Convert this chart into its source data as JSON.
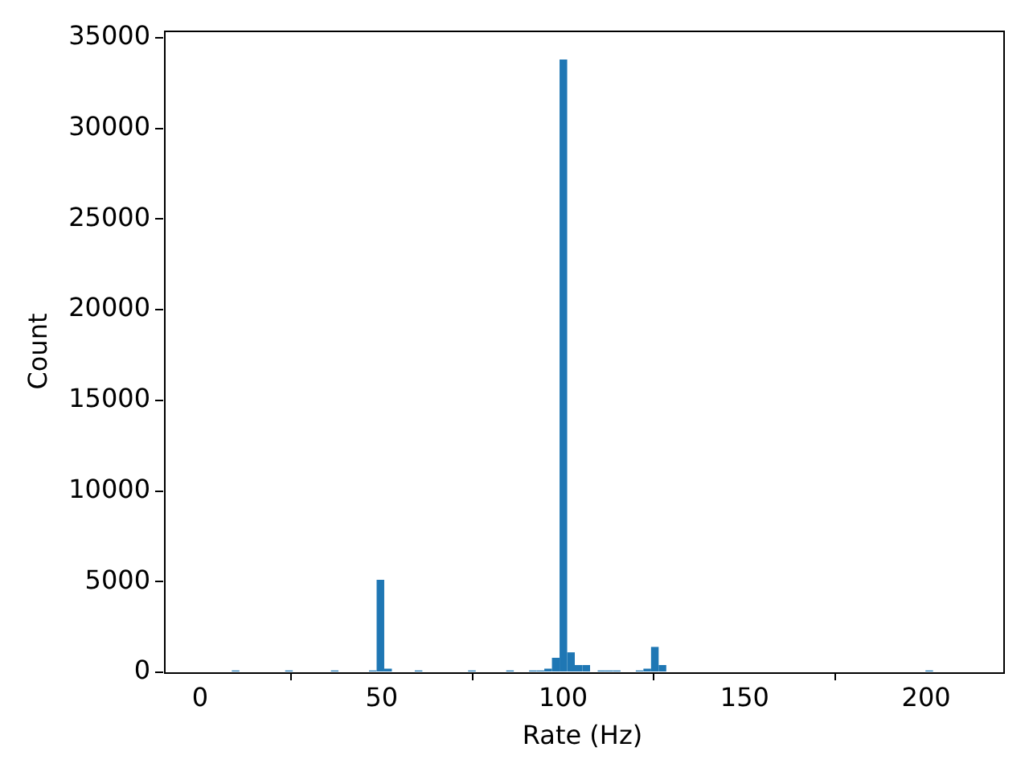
{
  "chart_data": {
    "type": "histogram",
    "xlabel": "Rate (Hz)",
    "ylabel": "Count",
    "color": "#1f77b4",
    "bins": [
      0.3,
      2.4,
      4.5,
      6.6,
      8.7,
      10.8,
      12.9,
      15,
      17.1,
      19.2,
      21.3,
      23.4,
      25.5,
      27.6,
      29.7,
      31.8,
      33.9,
      36,
      38.1,
      40.2,
      42.3,
      44.4,
      46.5,
      48.6,
      50.7,
      52.8,
      54.9,
      57,
      59.1,
      61.2,
      63.3,
      65.4,
      67.5,
      69.6,
      71.7,
      73.8,
      75.9,
      78,
      80.1,
      82.2,
      84.3,
      86.4,
      88.5,
      90.6,
      92.7,
      94.8,
      96.9,
      99,
      101.1,
      103.2,
      105.3,
      107.4,
      109.5,
      111.6,
      113.7,
      115.8,
      117.9,
      120,
      122.1,
      124.2,
      126.3,
      128.4,
      130.5,
      132.6,
      134.7,
      136.8,
      138.9,
      141,
      143.1,
      145.2,
      147.3,
      149.4,
      151.5,
      153.6,
      155.7,
      157.8,
      159.9,
      162,
      164.1,
      166.2,
      168.3,
      170.4,
      172.5,
      174.6,
      176.7,
      178.8,
      180.9,
      183,
      185.1,
      187.2,
      189.3,
      191.4,
      193.5,
      195.6,
      197.7,
      199.8,
      201.9,
      204,
      206.1,
      208.2,
      210.3
    ],
    "values": [
      0,
      0,
      0,
      0,
      100,
      0,
      0,
      0,
      0,
      0,
      0,
      100,
      0,
      0,
      0,
      0,
      0,
      100,
      0,
      0,
      0,
      0,
      100,
      5100,
      200,
      0,
      0,
      0,
      100,
      0,
      0,
      0,
      0,
      0,
      0,
      100,
      0,
      0,
      0,
      0,
      100,
      0,
      0,
      100,
      100,
      200,
      800,
      33800,
      1100,
      400,
      400,
      0,
      100,
      100,
      100,
      0,
      0,
      100,
      200,
      1400,
      400,
      0,
      0,
      0,
      0,
      0,
      0,
      0,
      0,
      0,
      0,
      0,
      0,
      0,
      0,
      0,
      0,
      0,
      0,
      0,
      0,
      0,
      0,
      0,
      0,
      0,
      0,
      0,
      0,
      0,
      0,
      0,
      0,
      0,
      0,
      100,
      0,
      0,
      0,
      0
    ],
    "xlim": [
      -10.2,
      220.8
    ],
    "xticks": [
      0,
      50,
      100,
      150,
      200
    ],
    "ylim": [
      0,
      35400
    ],
    "yticks": [
      0,
      5000,
      10000,
      15000,
      20000,
      25000,
      30000,
      35000
    ]
  }
}
